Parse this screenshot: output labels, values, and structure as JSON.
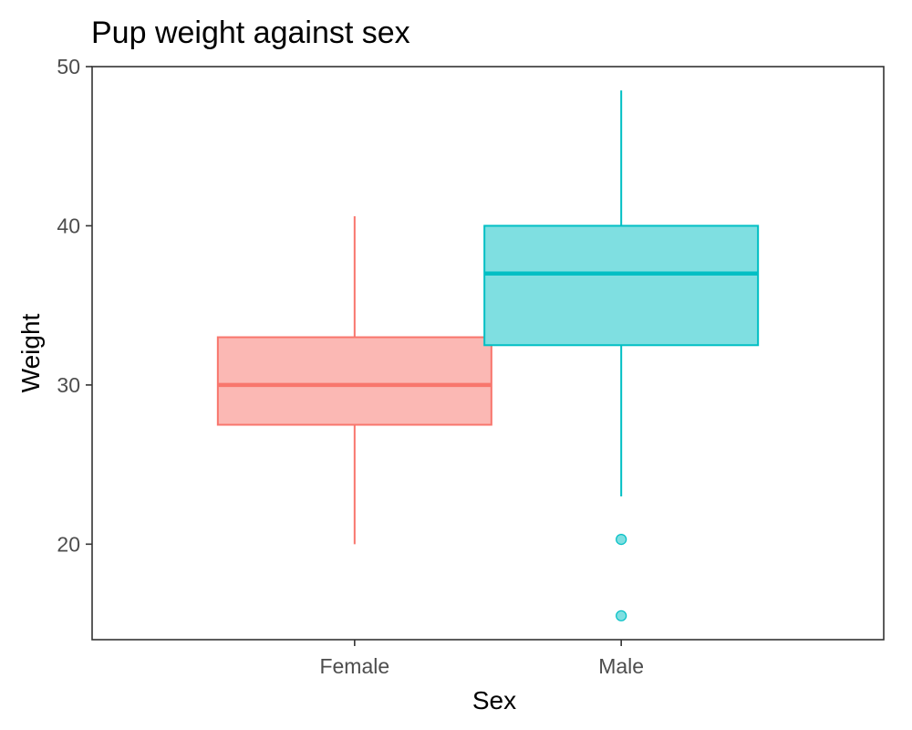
{
  "chart_data": {
    "type": "boxplot",
    "title": "Pup weight against sex",
    "xlabel": "Sex",
    "ylabel": "Weight",
    "categories": [
      "Female",
      "Male"
    ],
    "ylim": [
      14,
      50
    ],
    "yticks": [
      20,
      30,
      40,
      50
    ],
    "grid": false,
    "legend": "none",
    "boxes": [
      {
        "category": "Female",
        "whisker_low": 20,
        "q1": 27.5,
        "median": 30,
        "q3": 33,
        "whisker_high": 40.6,
        "outliers": [],
        "color": "#F8766D",
        "fill": "#FBB8B4"
      },
      {
        "category": "Male",
        "whisker_low": 23,
        "q1": 32.5,
        "median": 37,
        "q3": 40,
        "whisker_high": 48.5,
        "outliers": [
          20.3,
          15.5
        ],
        "color": "#00BFC4",
        "fill": "#7FDFE1"
      }
    ]
  }
}
